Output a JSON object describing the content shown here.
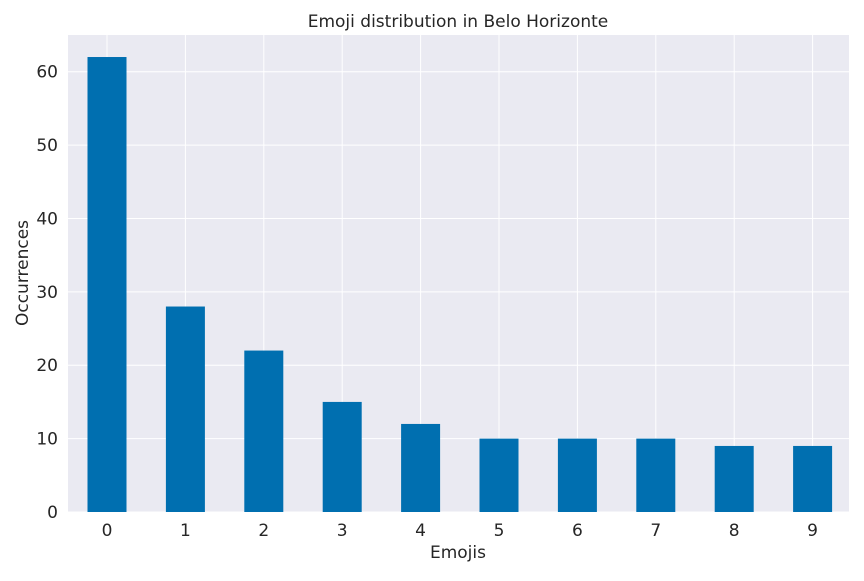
{
  "chart_data": {
    "type": "bar",
    "title": "Emoji distribution in Belo Horizonte",
    "xlabel": "Emojis",
    "ylabel": "Occurrences",
    "categories": [
      "0",
      "1",
      "2",
      "3",
      "4",
      "5",
      "6",
      "7",
      "8",
      "9"
    ],
    "values": [
      62,
      28,
      22,
      15,
      12,
      10,
      10,
      10,
      9,
      9
    ],
    "ylim": [
      0,
      65
    ],
    "yticks": [
      0,
      10,
      20,
      30,
      40,
      50,
      60
    ],
    "grid": true,
    "legend": "none",
    "colors": {
      "bar": "#006fb0",
      "plot_background": "#eaeaf2",
      "grid": "#ffffff"
    }
  }
}
